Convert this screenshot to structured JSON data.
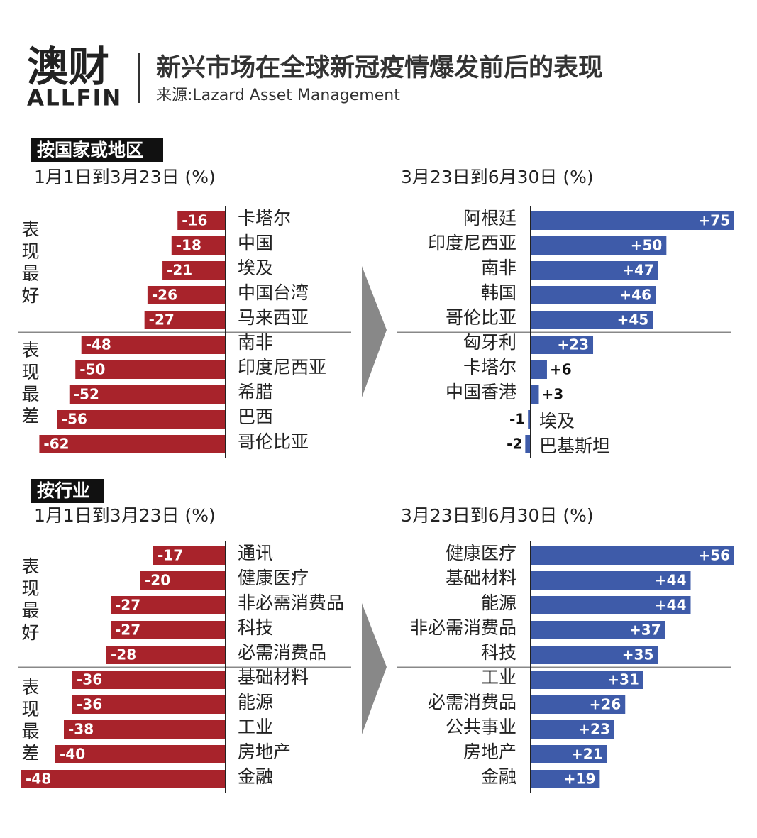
{
  "header": {
    "brand": "澳财",
    "brand_en": "ALLFIN",
    "title": "新兴市场在全球新冠疫情爆发前后的表现",
    "source": "来源:Lazard Asset Management"
  },
  "sections": [
    "按国家或地区",
    "按行业"
  ],
  "groups": [
    "表现最好",
    "表现最差"
  ],
  "chart_data": [
    {
      "type": "bar",
      "orientation": "horizontal",
      "subtitle": "1月1日到3月23日 (%)",
      "color": "#a8232b",
      "xlim": [
        -68,
        0
      ],
      "categories": [
        "卡塔尔",
        "中国",
        "埃及",
        "中国台湾",
        "马来西亚",
        "南非",
        "印度尼西亚",
        "希腊",
        "巴西",
        "哥伦比亚"
      ],
      "values": [
        -16,
        -18,
        -21,
        -26,
        -27,
        -48,
        -50,
        -52,
        -56,
        -62
      ]
    },
    {
      "type": "bar",
      "orientation": "horizontal",
      "subtitle": "3月23日到6月30日 (%)",
      "color": "#3e5ba9",
      "xlim": [
        0,
        75
      ],
      "categories": [
        "阿根廷",
        "印度尼西亚",
        "南非",
        "韩国",
        "哥伦比亚",
        "匈牙利",
        "卡塔尔",
        "中国香港",
        "埃及",
        "巴基斯坦"
      ],
      "values": [
        75,
        50,
        47,
        46,
        45,
        23,
        6,
        3,
        -1,
        -2
      ],
      "value_labels": [
        "+75",
        "+50",
        "+47",
        "+46",
        "+45",
        "+23",
        "+6",
        "+3",
        "-1",
        "-2"
      ]
    },
    {
      "type": "bar",
      "orientation": "horizontal",
      "subtitle": "1月1日到3月23日 (%)",
      "color": "#a8232b",
      "xlim": [
        -48,
        0
      ],
      "categories": [
        "通讯",
        "健康医疗",
        "非必需消费品",
        "科技",
        "必需消费品",
        "基础材料",
        "能源",
        "工业",
        "房地产",
        "金融"
      ],
      "values": [
        -17,
        -20,
        -27,
        -27,
        -28,
        -36,
        -36,
        -38,
        -40,
        -48
      ]
    },
    {
      "type": "bar",
      "orientation": "horizontal",
      "subtitle": "3月23日到6月30日 (%)",
      "color": "#3e5ba9",
      "xlim": [
        0,
        56
      ],
      "categories": [
        "健康医疗",
        "基础材料",
        "能源",
        "非必需消费品",
        "科技",
        "工业",
        "必需消费品",
        "公共事业",
        "房地产",
        "金融"
      ],
      "values": [
        56,
        44,
        44,
        37,
        35,
        31,
        26,
        23,
        21,
        19
      ],
      "value_labels": [
        "+56",
        "+44",
        "+44",
        "+37",
        "+35",
        "+31",
        "+26",
        "+23",
        "+21",
        "+19"
      ]
    }
  ]
}
